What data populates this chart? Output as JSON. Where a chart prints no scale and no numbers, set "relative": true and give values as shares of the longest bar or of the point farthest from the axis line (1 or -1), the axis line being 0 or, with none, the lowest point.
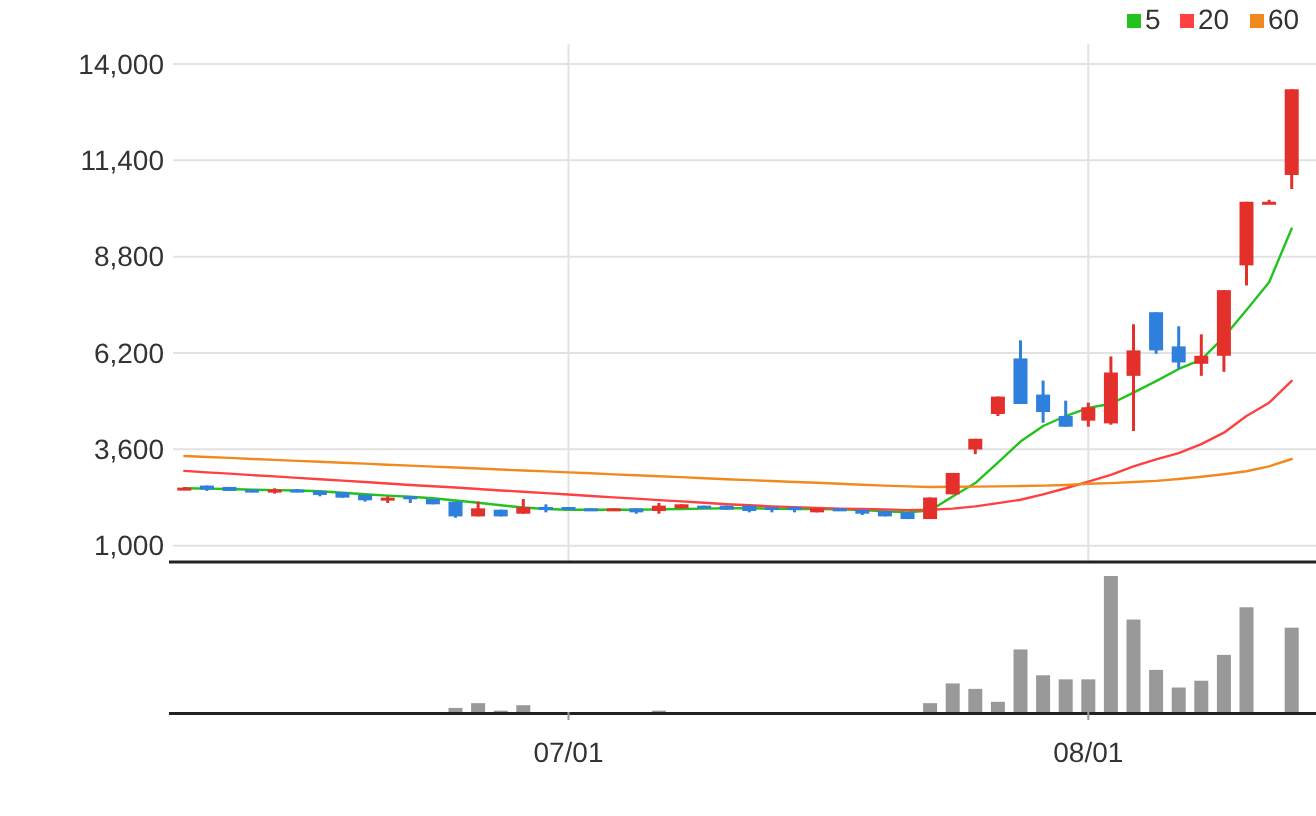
{
  "chart_data": [
    {
      "type": "candlestick",
      "categories": [
        null,
        null,
        null,
        null,
        null,
        null,
        null,
        null,
        null,
        null,
        null,
        null,
        null,
        null,
        null,
        null,
        null,
        null,
        null,
        null,
        null,
        null,
        null,
        null,
        null,
        null,
        null,
        null,
        null,
        null,
        null,
        null,
        null,
        null,
        null,
        null,
        null,
        null,
        null,
        null,
        null,
        null,
        null,
        null,
        null,
        null,
        null,
        null,
        null,
        null
      ],
      "ohlc": [
        [
          2514,
          2580,
          2500,
          2568
        ],
        [
          2622,
          2622,
          2478,
          2514
        ],
        [
          2586,
          2586,
          2478,
          2478
        ],
        [
          2514,
          2514,
          2442,
          2442
        ],
        [
          2460,
          2550,
          2406,
          2514
        ],
        [
          2514,
          2530,
          2442,
          2442
        ],
        [
          2478,
          2478,
          2333,
          2370
        ],
        [
          2442,
          2442,
          2297,
          2297
        ],
        [
          2370,
          2370,
          2189,
          2225
        ],
        [
          2225,
          2333,
          2153,
          2297
        ],
        [
          2333,
          2333,
          2153,
          2261
        ],
        [
          2261,
          2261,
          2117,
          2117
        ],
        [
          2189,
          2189,
          1755,
          1791
        ],
        [
          1791,
          2189,
          1791,
          2008
        ],
        [
          1972,
          1972,
          1791,
          1791
        ],
        [
          1864,
          2261,
          1864,
          2044
        ],
        [
          2044,
          2117,
          1900,
          1972
        ],
        [
          2044,
          2044,
          1972,
          1972
        ],
        [
          2008,
          2008,
          1936,
          1936
        ],
        [
          1936,
          2008,
          1936,
          2008
        ],
        [
          2008,
          2008,
          1864,
          1900
        ],
        [
          1936,
          2153,
          1864,
          2081
        ],
        [
          2008,
          2117,
          2008,
          2117
        ],
        [
          2081,
          2081,
          2008,
          2008
        ],
        [
          2081,
          2081,
          1972,
          1972
        ],
        [
          2081,
          2081,
          1900,
          1936
        ],
        [
          2044,
          2044,
          1900,
          1972
        ],
        [
          2044,
          2044,
          1900,
          1972
        ],
        [
          1900,
          2008,
          1900,
          2008
        ],
        [
          2008,
          2008,
          1936,
          1936
        ],
        [
          1972,
          1972,
          1828,
          1864
        ],
        [
          1936,
          1936,
          1791,
          1791
        ],
        [
          1900,
          1900,
          1719,
          1719
        ],
        [
          1719,
          2300,
          1719,
          2300
        ],
        [
          2386,
          2964,
          2386,
          2964
        ],
        [
          3597,
          3886,
          3470,
          3886
        ],
        [
          4554,
          5024,
          4500,
          5024
        ],
        [
          6054,
          6542,
          4825,
          4825
        ],
        [
          5078,
          5458,
          4319,
          4608
        ],
        [
          4500,
          4916,
          4211,
          4211
        ],
        [
          4374,
          4861,
          4211,
          4735
        ],
        [
          4301,
          6108,
          4265,
          5674
        ],
        [
          5584,
          6975,
          4096,
          6271
        ],
        [
          7301,
          7301,
          6180,
          6271
        ],
        [
          6379,
          6921,
          5765,
          5945
        ],
        [
          5909,
          6704,
          5584,
          6126
        ],
        [
          6126,
          7897,
          5693,
          7897
        ],
        [
          8566,
          10282,
          8024,
          10282
        ],
        [
          10250,
          10336,
          10250,
          10282
        ],
        [
          11005,
          13318,
          10626,
          13318
        ]
      ],
      "series": [
        {
          "name": "5",
          "type": "line",
          "color": "#22c31c",
          "values": [
            2550,
            2540,
            2530,
            2510,
            2500,
            2490,
            2470,
            2430,
            2390,
            2350,
            2320,
            2280,
            2220,
            2160,
            2090,
            2030,
            1990,
            1970,
            1970,
            1970,
            1970,
            1980,
            1990,
            2000,
            2010,
            2010,
            2000,
            1990,
            1990,
            1980,
            1960,
            1930,
            1900,
            1950,
            2330,
            2690,
            3240,
            3810,
            4230,
            4500,
            4720,
            4830,
            5130,
            5440,
            5770,
            6020,
            6630,
            7360,
            8110,
            9560
          ]
        },
        {
          "name": "20",
          "type": "line",
          "color": "#ff4040",
          "values": [
            3020,
            2980,
            2945,
            2905,
            2870,
            2830,
            2795,
            2755,
            2720,
            2680,
            2640,
            2605,
            2570,
            2530,
            2490,
            2455,
            2420,
            2380,
            2340,
            2305,
            2270,
            2230,
            2195,
            2160,
            2120,
            2090,
            2060,
            2040,
            2020,
            2000,
            1990,
            1980,
            1960,
            1970,
            2000,
            2060,
            2150,
            2240,
            2385,
            2550,
            2730,
            2910,
            3140,
            3330,
            3500,
            3740,
            4050,
            4500,
            4860,
            5450
          ]
        },
        {
          "name": "60",
          "type": "line",
          "color": "#f08a1e",
          "values": [
            3420,
            3395,
            3370,
            3340,
            3315,
            3290,
            3265,
            3240,
            3215,
            3185,
            3160,
            3135,
            3110,
            3085,
            3055,
            3030,
            3005,
            2980,
            2955,
            2925,
            2900,
            2875,
            2850,
            2820,
            2795,
            2770,
            2745,
            2720,
            2700,
            2670,
            2645,
            2620,
            2600,
            2585,
            2590,
            2595,
            2600,
            2610,
            2620,
            2640,
            2670,
            2690,
            2720,
            2750,
            2800,
            2860,
            2930,
            3010,
            3140,
            3340
          ]
        }
      ],
      "ylim": [
        560,
        14000
      ],
      "yticks": [
        {
          "value": 1000,
          "label": "1,000"
        },
        {
          "value": 3600,
          "label": "3,600"
        },
        {
          "value": 6200,
          "label": "6,200"
        },
        {
          "value": 8800,
          "label": "8,800"
        },
        {
          "value": 11400,
          "label": "11,400"
        },
        {
          "value": 14000,
          "label": "14,000"
        }
      ],
      "grid": true,
      "legend": "top right",
      "tick_labels": "y"
    },
    {
      "type": "bar",
      "relative": true,
      "color": "#999999",
      "categories": [
        null,
        null,
        null,
        null,
        null,
        null,
        null,
        null,
        null,
        null,
        null,
        null,
        null,
        null,
        null,
        null,
        null,
        "07/01",
        null,
        null,
        null,
        null,
        null,
        null,
        null,
        null,
        null,
        null,
        null,
        null,
        null,
        null,
        null,
        null,
        null,
        null,
        null,
        null,
        null,
        null,
        "08/01",
        null,
        null,
        null,
        null,
        null,
        null,
        null,
        null,
        null
      ],
      "values": [
        null,
        null,
        null,
        null,
        null,
        null,
        null,
        null,
        null,
        null,
        null,
        null,
        0.03,
        0.065,
        0.01,
        0.05,
        null,
        null,
        null,
        null,
        null,
        0.01,
        null,
        null,
        null,
        null,
        null,
        null,
        null,
        null,
        null,
        null,
        null,
        0.065,
        0.21,
        0.17,
        0.075,
        0.46,
        0.27,
        0.24,
        0.24,
        1,
        0.68,
        0.31,
        0.18,
        0.23,
        0.42,
        0.77,
        null,
        0.62
      ],
      "tick_labels": "x"
    }
  ]
}
